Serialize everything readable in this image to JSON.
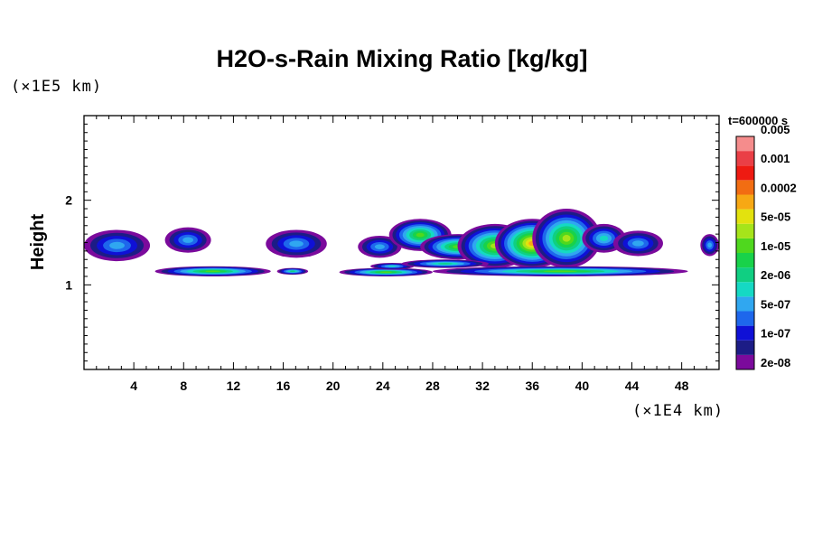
{
  "chart_data": {
    "type": "heatmap",
    "title": "H2O-s-Rain Mixing Ratio [kg/kg]",
    "ylabel": "Height",
    "x_unit": "(×1E4 km)",
    "y_unit": "(×1E5 km)",
    "time_label": "t=600000 s",
    "xlim": [
      0,
      51
    ],
    "ylim": [
      0,
      3
    ],
    "x_ticks": [
      4,
      8,
      12,
      16,
      20,
      24,
      28,
      32,
      36,
      40,
      44,
      48
    ],
    "y_ticks": [
      1,
      2
    ],
    "colorbar": {
      "levels": [
        "2e-08",
        "1e-07",
        "5e-07",
        "2e-06",
        "1e-05",
        "5e-05",
        "0.0002",
        "0.001",
        "0.005"
      ],
      "colors": [
        "#7b0a9c",
        "#1c1c86",
        "#0f10d6",
        "#1e67ec",
        "#30a7f0",
        "#15d9c4",
        "#10cf82",
        "#18d24a",
        "#4fd81e",
        "#a6e41a",
        "#e3e20e",
        "#f7a814",
        "#f26d12",
        "#ee1a12",
        "#ea3f46",
        "#f58c8c"
      ]
    },
    "regions": [
      {
        "x": [
          0,
          5.3
        ],
        "y": [
          1.28,
          1.65
        ],
        "peak": 4
      },
      {
        "x": [
          6.5,
          10.2
        ],
        "y": [
          1.38,
          1.68
        ],
        "peak": 4
      },
      {
        "x": [
          14.6,
          19.5
        ],
        "y": [
          1.32,
          1.65
        ],
        "peak": 4
      },
      {
        "x": [
          22,
          25.5
        ],
        "y": [
          1.32,
          1.58
        ],
        "peak": 4
      },
      {
        "x": [
          24.5,
          29.5
        ],
        "y": [
          1.4,
          1.78
        ],
        "peak": 8
      },
      {
        "x": [
          27,
          33
        ],
        "y": [
          1.3,
          1.6
        ],
        "peak": 8
      },
      {
        "x": [
          30,
          36
        ],
        "y": [
          1.2,
          1.72
        ],
        "peak": 9
      },
      {
        "x": [
          33,
          39
        ],
        "y": [
          1.2,
          1.78
        ],
        "peak": 11
      },
      {
        "x": [
          36,
          41.5
        ],
        "y": [
          1.2,
          1.9
        ],
        "peak": 9
      },
      {
        "x": [
          40,
          43.5
        ],
        "y": [
          1.38,
          1.72
        ],
        "peak": 5
      },
      {
        "x": [
          42.5,
          46.5
        ],
        "y": [
          1.34,
          1.64
        ],
        "peak": 4
      },
      {
        "x": [
          49.5,
          51
        ],
        "y": [
          1.34,
          1.6
        ],
        "peak": 4
      },
      {
        "x": [
          5.7,
          15
        ],
        "y": [
          1.1,
          1.22
        ],
        "peak": 8
      },
      {
        "x": [
          15.5,
          18
        ],
        "y": [
          1.12,
          1.2
        ],
        "peak": 6
      },
      {
        "x": [
          20.5,
          28
        ],
        "y": [
          1.1,
          1.2
        ],
        "peak": 8
      },
      {
        "x": [
          28,
          48.5
        ],
        "y": [
          1.1,
          1.22
        ],
        "peak": 8
      },
      {
        "x": [
          23,
          26.5
        ],
        "y": [
          1.18,
          1.26
        ],
        "peak": 5
      },
      {
        "x": [
          25.5,
          32.5
        ],
        "y": [
          1.2,
          1.3
        ],
        "peak": 6
      }
    ]
  }
}
